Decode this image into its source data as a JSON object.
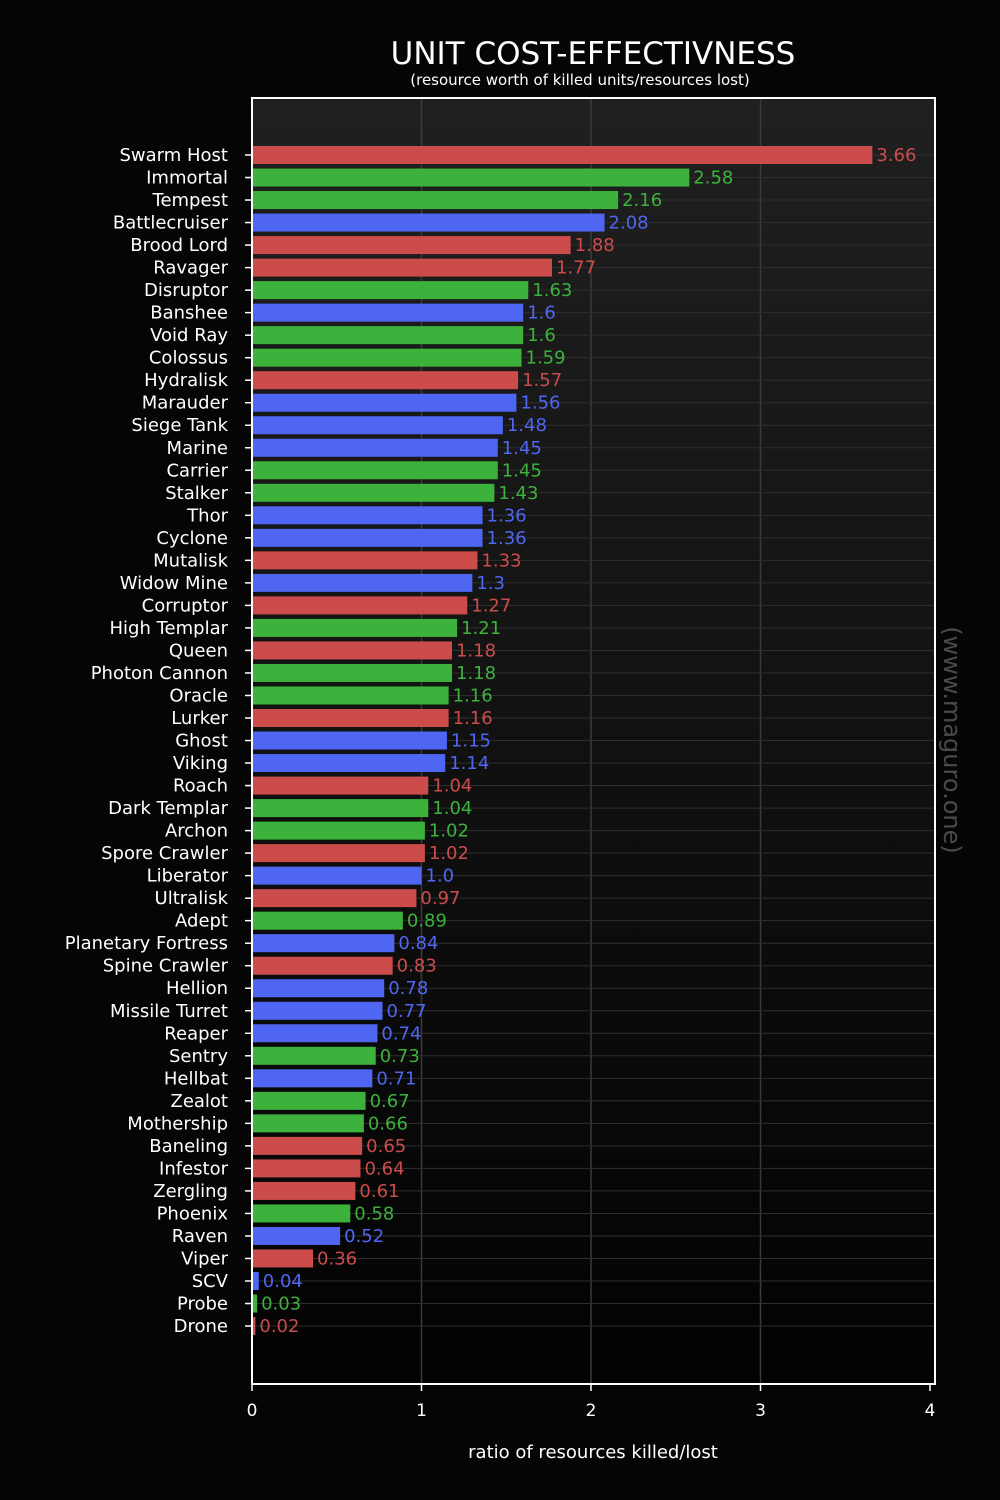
{
  "chart_data": {
    "type": "bar",
    "orientation": "horizontal",
    "title": "UNIT COST-EFFECTIVNESS",
    "subtitle": "(resource worth of killed units/resources lost)",
    "xlabel": "ratio of resources killed/lost",
    "ylabel": "",
    "watermark": "(www.maguro.one)",
    "xlim": [
      0,
      4
    ],
    "xticks": [
      "0",
      "1",
      "2",
      "3",
      "4"
    ],
    "grid": true,
    "colors": {
      "zerg": "#cc4c4c",
      "protoss": "#3cb23c",
      "terran": "#4f66f2",
      "background": "#050505",
      "plot_bg_top": "#1f1f1f"
    },
    "bars": [
      {
        "label": "Swarm Host",
        "value": 3.66,
        "display": "3.66",
        "race": "zerg"
      },
      {
        "label": "Immortal",
        "value": 2.58,
        "display": "2.58",
        "race": "protoss"
      },
      {
        "label": "Tempest",
        "value": 2.16,
        "display": "2.16",
        "race": "protoss"
      },
      {
        "label": "Battlecruiser",
        "value": 2.08,
        "display": "2.08",
        "race": "terran"
      },
      {
        "label": "Brood Lord",
        "value": 1.88,
        "display": "1.88",
        "race": "zerg"
      },
      {
        "label": "Ravager",
        "value": 1.77,
        "display": "1.77",
        "race": "zerg"
      },
      {
        "label": "Disruptor",
        "value": 1.63,
        "display": "1.63",
        "race": "protoss"
      },
      {
        "label": "Banshee",
        "value": 1.6,
        "display": "1.6",
        "race": "terran"
      },
      {
        "label": "Void Ray",
        "value": 1.6,
        "display": "1.6",
        "race": "protoss"
      },
      {
        "label": "Colossus",
        "value": 1.59,
        "display": "1.59",
        "race": "protoss"
      },
      {
        "label": "Hydralisk",
        "value": 1.57,
        "display": "1.57",
        "race": "zerg"
      },
      {
        "label": "Marauder",
        "value": 1.56,
        "display": "1.56",
        "race": "terran"
      },
      {
        "label": "Siege Tank",
        "value": 1.48,
        "display": "1.48",
        "race": "terran"
      },
      {
        "label": "Marine",
        "value": 1.45,
        "display": "1.45",
        "race": "terran"
      },
      {
        "label": "Carrier",
        "value": 1.45,
        "display": "1.45",
        "race": "protoss"
      },
      {
        "label": "Stalker",
        "value": 1.43,
        "display": "1.43",
        "race": "protoss"
      },
      {
        "label": "Thor",
        "value": 1.36,
        "display": "1.36",
        "race": "terran"
      },
      {
        "label": "Cyclone",
        "value": 1.36,
        "display": "1.36",
        "race": "terran"
      },
      {
        "label": "Mutalisk",
        "value": 1.33,
        "display": "1.33",
        "race": "zerg"
      },
      {
        "label": "Widow Mine",
        "value": 1.3,
        "display": "1.3",
        "race": "terran"
      },
      {
        "label": "Corruptor",
        "value": 1.27,
        "display": "1.27",
        "race": "zerg"
      },
      {
        "label": "High Templar",
        "value": 1.21,
        "display": "1.21",
        "race": "protoss"
      },
      {
        "label": "Queen",
        "value": 1.18,
        "display": "1.18",
        "race": "zerg"
      },
      {
        "label": "Photon Cannon",
        "value": 1.18,
        "display": "1.18",
        "race": "protoss"
      },
      {
        "label": "Oracle",
        "value": 1.16,
        "display": "1.16",
        "race": "protoss"
      },
      {
        "label": "Lurker",
        "value": 1.16,
        "display": "1.16",
        "race": "zerg"
      },
      {
        "label": "Ghost",
        "value": 1.15,
        "display": "1.15",
        "race": "terran"
      },
      {
        "label": "Viking",
        "value": 1.14,
        "display": "1.14",
        "race": "terran"
      },
      {
        "label": "Roach",
        "value": 1.04,
        "display": "1.04",
        "race": "zerg"
      },
      {
        "label": "Dark Templar",
        "value": 1.04,
        "display": "1.04",
        "race": "protoss"
      },
      {
        "label": "Archon",
        "value": 1.02,
        "display": "1.02",
        "race": "protoss"
      },
      {
        "label": "Spore Crawler",
        "value": 1.02,
        "display": "1.02",
        "race": "zerg"
      },
      {
        "label": "Liberator",
        "value": 1.0,
        "display": "1.0",
        "race": "terran"
      },
      {
        "label": "Ultralisk",
        "value": 0.97,
        "display": "0.97",
        "race": "zerg"
      },
      {
        "label": "Adept",
        "value": 0.89,
        "display": "0.89",
        "race": "protoss"
      },
      {
        "label": "Planetary Fortress",
        "value": 0.84,
        "display": "0.84",
        "race": "terran"
      },
      {
        "label": "Spine Crawler",
        "value": 0.83,
        "display": "0.83",
        "race": "zerg"
      },
      {
        "label": "Hellion",
        "value": 0.78,
        "display": "0.78",
        "race": "terran"
      },
      {
        "label": "Missile Turret",
        "value": 0.77,
        "display": "0.77",
        "race": "terran"
      },
      {
        "label": "Reaper",
        "value": 0.74,
        "display": "0.74",
        "race": "terran"
      },
      {
        "label": "Sentry",
        "value": 0.73,
        "display": "0.73",
        "race": "protoss"
      },
      {
        "label": "Hellbat",
        "value": 0.71,
        "display": "0.71",
        "race": "terran"
      },
      {
        "label": "Zealot",
        "value": 0.67,
        "display": "0.67",
        "race": "protoss"
      },
      {
        "label": "Mothership",
        "value": 0.66,
        "display": "0.66",
        "race": "protoss"
      },
      {
        "label": "Baneling",
        "value": 0.65,
        "display": "0.65",
        "race": "zerg"
      },
      {
        "label": "Infestor",
        "value": 0.64,
        "display": "0.64",
        "race": "zerg"
      },
      {
        "label": "Zergling",
        "value": 0.61,
        "display": "0.61",
        "race": "zerg"
      },
      {
        "label": "Phoenix",
        "value": 0.58,
        "display": "0.58",
        "race": "protoss"
      },
      {
        "label": "Raven",
        "value": 0.52,
        "display": "0.52",
        "race": "terran"
      },
      {
        "label": "Viper",
        "value": 0.36,
        "display": "0.36",
        "race": "zerg"
      },
      {
        "label": "SCV",
        "value": 0.04,
        "display": "0.04",
        "race": "terran"
      },
      {
        "label": "Probe",
        "value": 0.03,
        "display": "0.03",
        "race": "protoss"
      },
      {
        "label": "Drone",
        "value": 0.02,
        "display": "0.02",
        "race": "zerg"
      }
    ]
  }
}
